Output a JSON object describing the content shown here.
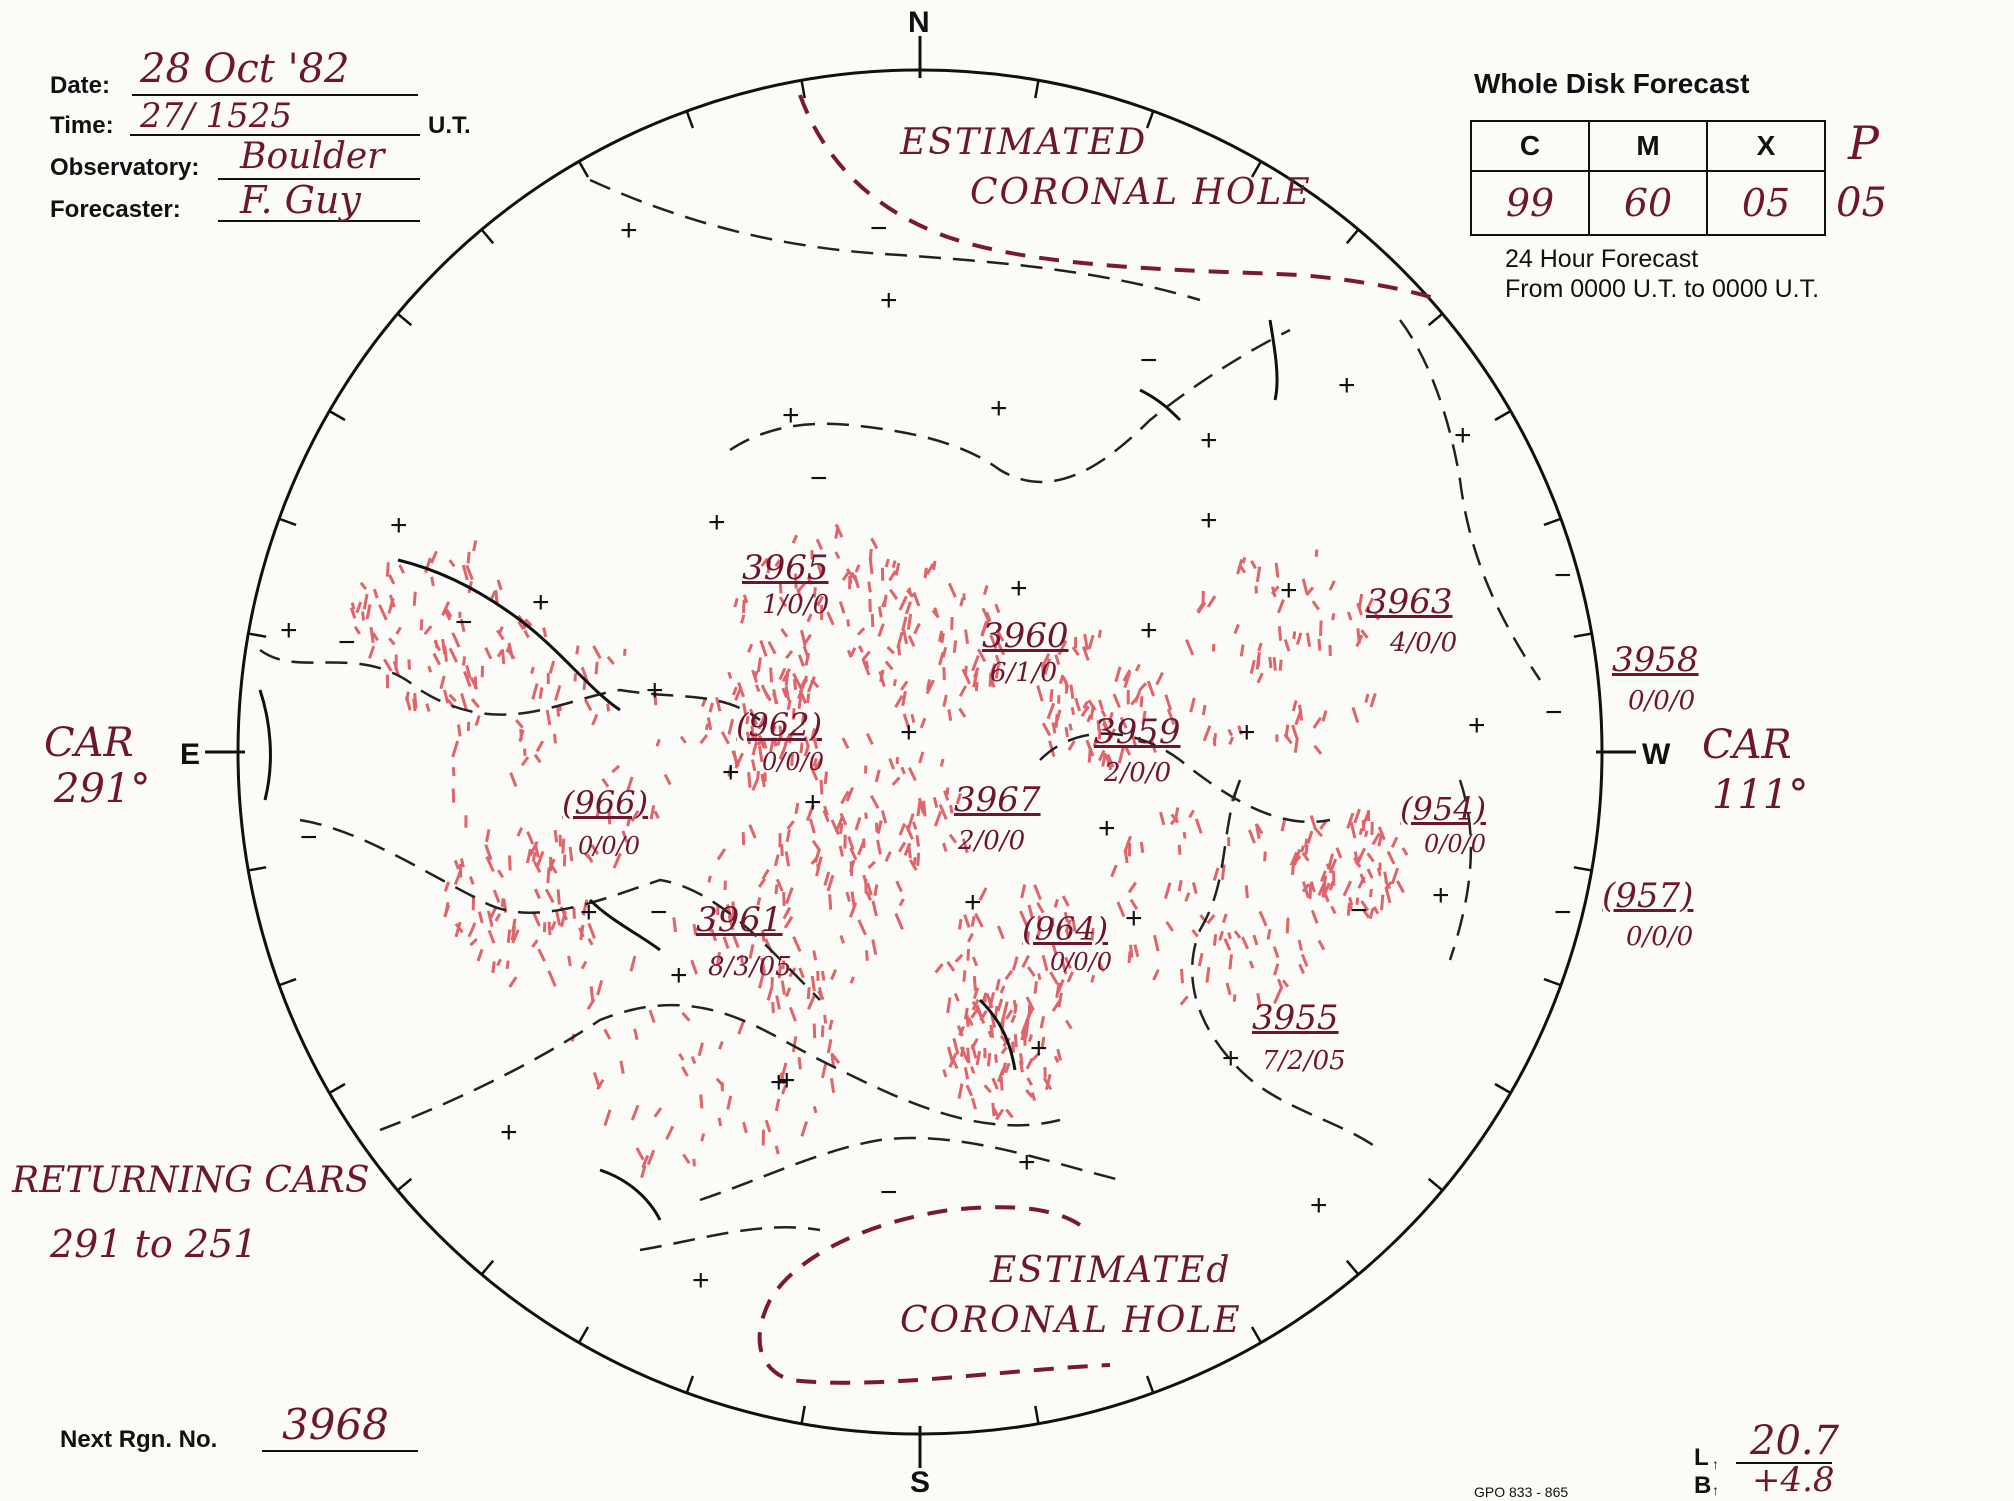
{
  "header": {
    "date_label": "Date:",
    "date_value": "28 Oct '82",
    "time_label": "Time:",
    "time_value": "27/ 1525",
    "time_unit": "U.T.",
    "observatory_label": "Observatory:",
    "observatory_value": "Boulder",
    "forecaster_label": "Forecaster:",
    "forecaster_value": "F. Guy"
  },
  "forecast": {
    "title": "Whole Disk Forecast",
    "columns": [
      "C",
      "M",
      "X"
    ],
    "values": [
      "99",
      "60",
      "05"
    ],
    "p_label": "P",
    "p_value": "05",
    "note_line1": "24 Hour Forecast",
    "note_line2": "From 0000 U.T. to 0000 U.T."
  },
  "compass": {
    "north": "N",
    "south": "S",
    "east": "E",
    "west": "W"
  },
  "car": {
    "east_label": "CAR",
    "east_value": "291°",
    "west_label": "CAR",
    "west_value": "111°",
    "returning_label": "RETURNING CARS",
    "returning_value": "291 to 251"
  },
  "coronal_holes": {
    "north": [
      "ESTIMATED",
      "CORONAL HOLE"
    ],
    "south": [
      "ESTIMATEd",
      "CORONAL HOLE"
    ]
  },
  "regions": [
    {
      "number": "3965",
      "class": "1/0/0"
    },
    {
      "number": "3960",
      "class": "6/1/0"
    },
    {
      "number": "3963",
      "class": "4/0/0"
    },
    {
      "number": "3958",
      "class": "0/0/0"
    },
    {
      "number": "(962)",
      "class": "0/0/0"
    },
    {
      "number": "3959",
      "class": "2/0/0"
    },
    {
      "number": "(966)",
      "class": "0/0/0"
    },
    {
      "number": "3967",
      "class": "2/0/0"
    },
    {
      "number": "(954)",
      "class": "0/0/0"
    },
    {
      "number": "(957)",
      "class": "0/0/0"
    },
    {
      "number": "3961",
      "class": "8/3/05"
    },
    {
      "number": "(964)",
      "class": "0/0/0"
    },
    {
      "number": "3955",
      "class": "7/2/05"
    }
  ],
  "footer": {
    "next_label": "Next Rgn. No.",
    "next_value": "3968",
    "l_label": "L",
    "l_value": "20.7",
    "b_label": "B",
    "b_value": "+4.8",
    "gpo": "GPO 833 - 865"
  },
  "colors": {
    "ink": "#6e1630",
    "plage": "#d6323c",
    "line": "#111111"
  }
}
